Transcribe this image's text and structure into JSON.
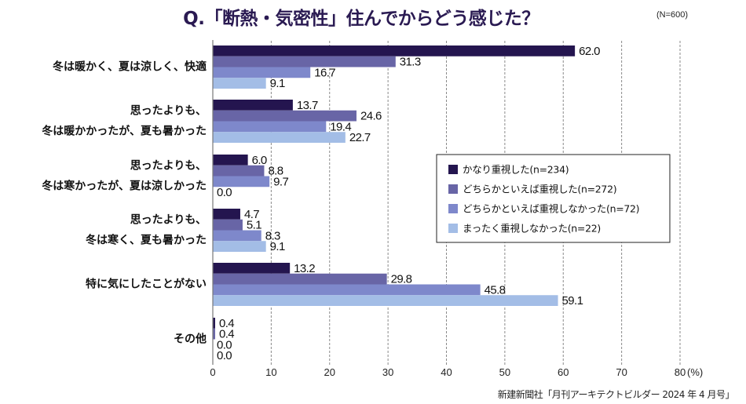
{
  "title": "Q.「断熱・気密性」住んでからどう感じた？",
  "sample_note": "(N=600)",
  "source": "新建新聞社「月刊アーキテクトビルダー 2024 年 4 月号」",
  "chart_data": {
    "type": "bar",
    "orientation": "horizontal",
    "title": "Q.「断熱・気密性」住んでからどう感じた？",
    "xlabel": "(%)",
    "ylabel": "",
    "xlim": [
      0,
      80
    ],
    "xticks": [
      "0",
      "10",
      "20",
      "30",
      "40",
      "50",
      "60",
      "70",
      "80"
    ],
    "x_unit": "(%)",
    "grid": "vertical dashed",
    "legend_position": "center-right",
    "categories": [
      [
        "冬は暖かく、夏は涼しく、快適"
      ],
      [
        "思ったよりも、",
        "冬は暖かかったが、夏も暑かった"
      ],
      [
        "思ったよりも、",
        "冬は寒かったが、夏は涼しかった"
      ],
      [
        "思ったよりも、",
        "冬は寒く、夏も暑かった"
      ],
      [
        "特に気にしたことがない"
      ],
      [
        "その他"
      ]
    ],
    "series": [
      {
        "name": "かなり重視した(n=234)",
        "color": "#24154f",
        "values": [
          62.0,
          13.7,
          6.0,
          4.7,
          13.2,
          0.4
        ],
        "labels": [
          "62.0",
          "13.7",
          "6.0",
          "4.7",
          "13.2",
          "0.4"
        ]
      },
      {
        "name": "どちらかといえば重視した(n=272)",
        "color": "#6865a6",
        "values": [
          31.3,
          24.6,
          8.8,
          5.1,
          29.8,
          0.4
        ],
        "labels": [
          "31.3",
          "24.6",
          "8.8",
          "5.1",
          "29.8",
          "0.4"
        ]
      },
      {
        "name": "どちらかといえば重視しなかった(n=72)",
        "color": "#7e88cb",
        "values": [
          16.7,
          19.4,
          9.7,
          8.3,
          45.8,
          0.0
        ],
        "labels": [
          "16.7",
          "19.4",
          "9.7",
          "8.3",
          "45.8",
          "0.0"
        ]
      },
      {
        "name": "まったく重視しなかった(n=22)",
        "color": "#a3bde6",
        "values": [
          9.1,
          22.7,
          0.0,
          9.1,
          59.1,
          0.0
        ],
        "labels": [
          "9.1",
          "22.7",
          "0.0",
          "9.1",
          "59.1",
          "0.0"
        ]
      }
    ]
  }
}
